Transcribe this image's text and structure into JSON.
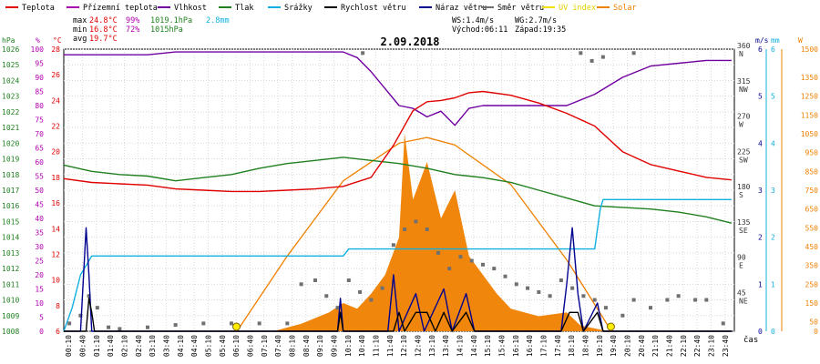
{
  "legend": [
    {
      "label": "Teplota",
      "color": "#e00000"
    },
    {
      "label": "Přízemní teplota",
      "color": "#b000b0"
    },
    {
      "label": "Vlhkost",
      "color": "#7000a0"
    },
    {
      "label": "Tlak",
      "color": "#208020"
    },
    {
      "label": "Srážky",
      "color": "#10b0e0"
    },
    {
      "label": "Rychlost větru",
      "color": "#000000"
    },
    {
      "label": "Náraz větru",
      "color": "#000090"
    },
    {
      "label": "Směr větru",
      "color": "#707070"
    },
    {
      "label": "UV index",
      "color": "#f0e000"
    },
    {
      "label": "Solar",
      "color": "#f08000"
    }
  ],
  "stats": {
    "max_label": "max",
    "max_temp": "24.8°C",
    "max_hum": "99%",
    "max_press": "1019.1hPa",
    "max_rain": "2.8mm",
    "min_label": "min",
    "min_temp": "16.8°C",
    "min_hum": "72%",
    "min_press": "1015hPa",
    "avg_label": "avg",
    "avg_temp": "19.7°C",
    "ws": "WS:1.4m/s",
    "wg": "WG:2.7m/s",
    "sunrise": "Východ:06:11",
    "sunset": "Západ:19:35"
  },
  "chart_data": {
    "type": "line",
    "title": "2.09.2018",
    "xlabel": "čas",
    "x_ticks": [
      "00:10",
      "00:40",
      "01:10",
      "01:40",
      "02:10",
      "02:40",
      "03:10",
      "03:40",
      "04:10",
      "04:40",
      "05:10",
      "05:40",
      "06:10",
      "06:40",
      "07:10",
      "07:40",
      "08:10",
      "08:40",
      "09:10",
      "09:40",
      "10:10",
      "10:40",
      "11:10",
      "11:40",
      "12:10",
      "12:40",
      "13:10",
      "13:40",
      "14:10",
      "14:40",
      "15:10",
      "15:40",
      "16:10",
      "16:40",
      "17:10",
      "17:40",
      "18:10",
      "18:40",
      "19:10",
      "19:40",
      "20:10",
      "20:40",
      "21:10",
      "21:40",
      "22:10",
      "22:40",
      "23:10",
      "23:40"
    ],
    "axes": {
      "pressure": {
        "unit": "hPa",
        "min": 1008,
        "max": 1026,
        "ticks": [
          1008,
          1009,
          1010,
          1011,
          1012,
          1013,
          1014,
          1015,
          1016,
          1017,
          1018,
          1019,
          1020,
          1021,
          1022,
          1023,
          1024,
          1025,
          1026
        ]
      },
      "humidity": {
        "unit": "%",
        "min": 0,
        "max": 100,
        "ticks": [
          0,
          5,
          10,
          15,
          20,
          25,
          30,
          35,
          40,
          45,
          50,
          55,
          60,
          65,
          70,
          75,
          80,
          85,
          90,
          95,
          100
        ]
      },
      "temperature": {
        "unit": "°C",
        "min": 6,
        "max": 28,
        "ticks": [
          6,
          8,
          10,
          12,
          14,
          16,
          18,
          20,
          22,
          24,
          26,
          28
        ]
      },
      "wind_dir": {
        "unit": "°",
        "min": 0,
        "max": 360,
        "ticks": [
          {
            "v": 45,
            "l": "NE"
          },
          {
            "v": 90,
            "l": "E"
          },
          {
            "v": 135,
            "l": "SE"
          },
          {
            "v": 180,
            "l": "S"
          },
          {
            "v": 225,
            "l": "SW"
          },
          {
            "v": 270,
            "l": "W"
          },
          {
            "v": 315,
            "l": "NW"
          },
          {
            "v": 360,
            "l": "N"
          }
        ]
      },
      "wind_speed": {
        "unit": "m/s",
        "min": 0,
        "max": 6,
        "ticks": [
          0,
          1,
          2,
          3,
          4,
          5,
          6
        ]
      },
      "rain": {
        "unit": "mm",
        "min": 0,
        "max": 6,
        "ticks": [
          0,
          1,
          2,
          3,
          4,
          5,
          6
        ]
      },
      "solar": {
        "unit": "W",
        "min": 0,
        "max": 1500,
        "ticks": [
          0,
          50,
          150,
          250,
          350,
          450,
          550,
          650,
          750,
          850,
          950,
          1050,
          1150,
          1250,
          1350,
          1500
        ]
      }
    },
    "series": [
      {
        "name": "Teplota",
        "axis": "temperature",
        "color": "#e00000",
        "points": [
          [
            0,
            17.9
          ],
          [
            1,
            17.6
          ],
          [
            2,
            17.5
          ],
          [
            3,
            17.4
          ],
          [
            4,
            17.1
          ],
          [
            5,
            17
          ],
          [
            6,
            16.9
          ],
          [
            7,
            16.9
          ],
          [
            8,
            17
          ],
          [
            9,
            17.1
          ],
          [
            10,
            17.3
          ],
          [
            11,
            18
          ],
          [
            11.8,
            20.5
          ],
          [
            12.5,
            23.2
          ],
          [
            13,
            23.9
          ],
          [
            13.5,
            24
          ],
          [
            14,
            24.2
          ],
          [
            14.5,
            24.6
          ],
          [
            15,
            24.7
          ],
          [
            16,
            24.4
          ],
          [
            17,
            23.8
          ],
          [
            18,
            23
          ],
          [
            19,
            22
          ],
          [
            20,
            20
          ],
          [
            21,
            19
          ],
          [
            22,
            18.5
          ],
          [
            23,
            18
          ],
          [
            23.9,
            17.8
          ]
        ]
      },
      {
        "name": "Vlhkost",
        "axis": "humidity",
        "color": "#7000a0",
        "points": [
          [
            0,
            98
          ],
          [
            3,
            98
          ],
          [
            4,
            99
          ],
          [
            8,
            99
          ],
          [
            9,
            99
          ],
          [
            10,
            99
          ],
          [
            10.5,
            97
          ],
          [
            11,
            92
          ],
          [
            11.5,
            86
          ],
          [
            12,
            80
          ],
          [
            12.5,
            79
          ],
          [
            13,
            76
          ],
          [
            13.5,
            78
          ],
          [
            14,
            73
          ],
          [
            14.5,
            79
          ],
          [
            15,
            80
          ],
          [
            16,
            80
          ],
          [
            17,
            80
          ],
          [
            18,
            80
          ],
          [
            19,
            84
          ],
          [
            20,
            90
          ],
          [
            21,
            94
          ],
          [
            22,
            95
          ],
          [
            23,
            96
          ],
          [
            23.9,
            96
          ]
        ]
      },
      {
        "name": "Tlak",
        "axis": "pressure",
        "color": "#208020",
        "points": [
          [
            0,
            1018.6
          ],
          [
            1,
            1018.2
          ],
          [
            2,
            1018
          ],
          [
            3,
            1017.9
          ],
          [
            4,
            1017.6
          ],
          [
            5,
            1017.8
          ],
          [
            6,
            1018
          ],
          [
            7,
            1018.4
          ],
          [
            8,
            1018.7
          ],
          [
            9,
            1018.9
          ],
          [
            10,
            1019.1
          ],
          [
            11,
            1018.9
          ],
          [
            12,
            1018.7
          ],
          [
            13,
            1018.4
          ],
          [
            14,
            1018
          ],
          [
            15,
            1017.8
          ],
          [
            16,
            1017.5
          ],
          [
            17,
            1017
          ],
          [
            18,
            1016.5
          ],
          [
            19,
            1016
          ],
          [
            20,
            1015.9
          ],
          [
            21,
            1015.8
          ],
          [
            22,
            1015.6
          ],
          [
            23,
            1015.3
          ],
          [
            23.9,
            1014.9
          ]
        ]
      },
      {
        "name": "Srážky",
        "axis": "rain",
        "color": "#10b0e0",
        "points": [
          [
            0,
            0
          ],
          [
            0.3,
            0.5
          ],
          [
            0.6,
            1.2
          ],
          [
            1,
            1.6
          ],
          [
            8,
            1.6
          ],
          [
            10,
            1.6
          ],
          [
            10.2,
            1.75
          ],
          [
            19,
            1.75
          ],
          [
            19.2,
            2.6
          ],
          [
            19.3,
            2.8
          ],
          [
            23.9,
            2.8
          ]
        ]
      },
      {
        "name": "Rychlost větru",
        "axis": "wind_speed",
        "color": "#000000",
        "points": [
          [
            0,
            0
          ],
          [
            0.8,
            0
          ],
          [
            0.9,
            0.7
          ],
          [
            1,
            0.4
          ],
          [
            1.1,
            0
          ],
          [
            9.8,
            0
          ],
          [
            9.9,
            0.4
          ],
          [
            10,
            0
          ],
          [
            11.8,
            0
          ],
          [
            12,
            0.4
          ],
          [
            12.2,
            0
          ],
          [
            12.6,
            0.4
          ],
          [
            13,
            0.4
          ],
          [
            13.3,
            0
          ],
          [
            13.6,
            0.4
          ],
          [
            13.9,
            0
          ],
          [
            14.4,
            0.4
          ],
          [
            14.7,
            0
          ],
          [
            17.8,
            0
          ],
          [
            18.1,
            0.4
          ],
          [
            18.4,
            0.4
          ],
          [
            18.6,
            0
          ],
          [
            19.1,
            0.4
          ],
          [
            19.3,
            0
          ],
          [
            23.9,
            0
          ]
        ]
      },
      {
        "name": "Náraz větru",
        "axis": "wind_speed",
        "color": "#000090",
        "points": [
          [
            0,
            0
          ],
          [
            0.6,
            0
          ],
          [
            0.8,
            2.2
          ],
          [
            0.9,
            1.2
          ],
          [
            1,
            0
          ],
          [
            9.8,
            0
          ],
          [
            9.9,
            0.7
          ],
          [
            10,
            0
          ],
          [
            11.6,
            0
          ],
          [
            11.8,
            1.2
          ],
          [
            12,
            0
          ],
          [
            12.6,
            0.8
          ],
          [
            12.9,
            0
          ],
          [
            13.6,
            0.9
          ],
          [
            13.9,
            0
          ],
          [
            14.4,
            0.8
          ],
          [
            14.7,
            0
          ],
          [
            17.8,
            0
          ],
          [
            18.0,
            1.0
          ],
          [
            18.2,
            2.2
          ],
          [
            18.4,
            0.8
          ],
          [
            18.6,
            0
          ],
          [
            19.1,
            0.6
          ],
          [
            19.3,
            0
          ],
          [
            23.9,
            0
          ]
        ]
      },
      {
        "name": "Solar",
        "axis": "solar",
        "color": "#f08000",
        "points": [
          [
            7.5,
            0
          ],
          [
            8.5,
            40
          ],
          [
            9.5,
            100
          ],
          [
            10,
            150
          ],
          [
            10.5,
            120
          ],
          [
            11,
            200
          ],
          [
            11.5,
            300
          ],
          [
            12,
            500
          ],
          [
            12.2,
            1050
          ],
          [
            12.5,
            700
          ],
          [
            13,
            900
          ],
          [
            13.5,
            600
          ],
          [
            14,
            750
          ],
          [
            14.5,
            400
          ],
          [
            15,
            300
          ],
          [
            15.5,
            200
          ],
          [
            16,
            120
          ],
          [
            17,
            80
          ],
          [
            18,
            100
          ],
          [
            18.5,
            30
          ],
          [
            19.5,
            0
          ]
        ]
      },
      {
        "name": "Solar-theoretical",
        "axis": "solar",
        "color": "#f08000",
        "points": [
          [
            6.2,
            0
          ],
          [
            8,
            400
          ],
          [
            10,
            800
          ],
          [
            12,
            1000
          ],
          [
            13,
            1030
          ],
          [
            14,
            990
          ],
          [
            16,
            780
          ],
          [
            18,
            380
          ],
          [
            19.6,
            0
          ]
        ]
      },
      {
        "name": "Směr větru",
        "axis": "wind_dir",
        "color": "#707070",
        "marker": "square",
        "points": [
          [
            0.2,
            10
          ],
          [
            0.6,
            20
          ],
          [
            0.9,
            45
          ],
          [
            1.2,
            30
          ],
          [
            1.6,
            5
          ],
          [
            2,
            3
          ],
          [
            3,
            5
          ],
          [
            4,
            8
          ],
          [
            5,
            10
          ],
          [
            6,
            10
          ],
          [
            7,
            10
          ],
          [
            8,
            10
          ],
          [
            8.5,
            60
          ],
          [
            9,
            65
          ],
          [
            9.4,
            45
          ],
          [
            9.8,
            30
          ],
          [
            10.2,
            65
          ],
          [
            10.6,
            50
          ],
          [
            11,
            40
          ],
          [
            11.4,
            55
          ],
          [
            11.8,
            110
          ],
          [
            12.2,
            130
          ],
          [
            12.6,
            140
          ],
          [
            13,
            130
          ],
          [
            13.4,
            100
          ],
          [
            13.8,
            80
          ],
          [
            14.2,
            95
          ],
          [
            14.6,
            90
          ],
          [
            15,
            85
          ],
          [
            15.4,
            80
          ],
          [
            15.8,
            70
          ],
          [
            16.2,
            60
          ],
          [
            16.6,
            55
          ],
          [
            17,
            50
          ],
          [
            17.4,
            45
          ],
          [
            17.8,
            65
          ],
          [
            18.2,
            55
          ],
          [
            18.6,
            45
          ],
          [
            19,
            40
          ],
          [
            19.4,
            30
          ],
          [
            20,
            20
          ],
          [
            20.4,
            40
          ],
          [
            21,
            30
          ],
          [
            21.6,
            40
          ],
          [
            22,
            45
          ],
          [
            22.6,
            40
          ],
          [
            23,
            40
          ],
          [
            23.6,
            10
          ],
          [
            18.5,
            355
          ],
          [
            18.9,
            345
          ],
          [
            19.3,
            350
          ],
          [
            20.4,
            355
          ],
          [
            10.7,
            355
          ]
        ]
      }
    ],
    "markers": [
      {
        "name": "Východ",
        "x": 6.18
      },
      {
        "name": "Západ",
        "x": 19.58
      }
    ]
  }
}
